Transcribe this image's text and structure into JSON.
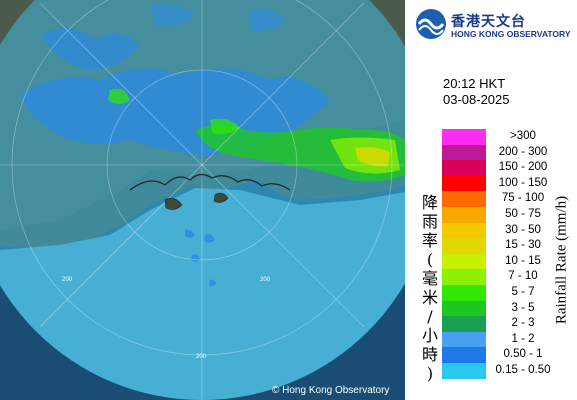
{
  "agency": {
    "name_cn": "香港天文台",
    "name_en": "HONG KONG OBSERVATORY"
  },
  "observation": {
    "time": "20:12 HKT",
    "date": "03-08-2025"
  },
  "legend": {
    "title_cn": "降雨率(毫米/小時)",
    "title_en": "Rainfall Rate (mm/h)",
    "items": [
      {
        "label": ">300",
        "color": "#ff2cf2"
      },
      {
        "label": "200 - 300",
        "color": "#c01a9c"
      },
      {
        "label": "150 - 200",
        "color": "#d8005a"
      },
      {
        "label": "100 - 150",
        "color": "#ff0000"
      },
      {
        "label": "75 - 100",
        "color": "#ff6a00"
      },
      {
        "label": "50 - 75",
        "color": "#f6a800"
      },
      {
        "label": "30 - 50",
        "color": "#f4c700"
      },
      {
        "label": "15 - 30",
        "color": "#e0d800"
      },
      {
        "label": "10 - 15",
        "color": "#c8f000"
      },
      {
        "label": "7 - 10",
        "color": "#8cf000"
      },
      {
        "label": "5 - 7",
        "color": "#33e800"
      },
      {
        "label": "3 - 5",
        "color": "#1ec822"
      },
      {
        "label": "2 - 3",
        "color": "#19a050"
      },
      {
        "label": "1 - 2",
        "color": "#4aa0f0"
      },
      {
        "label": "0.50 - 1",
        "color": "#1e78e6"
      },
      {
        "label": "0.15 - 0.50",
        "color": "#28c8f0"
      }
    ]
  },
  "map": {
    "range_ring_labels": [
      "200",
      "200",
      "200"
    ],
    "copyright": "© Hong Kong Observatory"
  }
}
